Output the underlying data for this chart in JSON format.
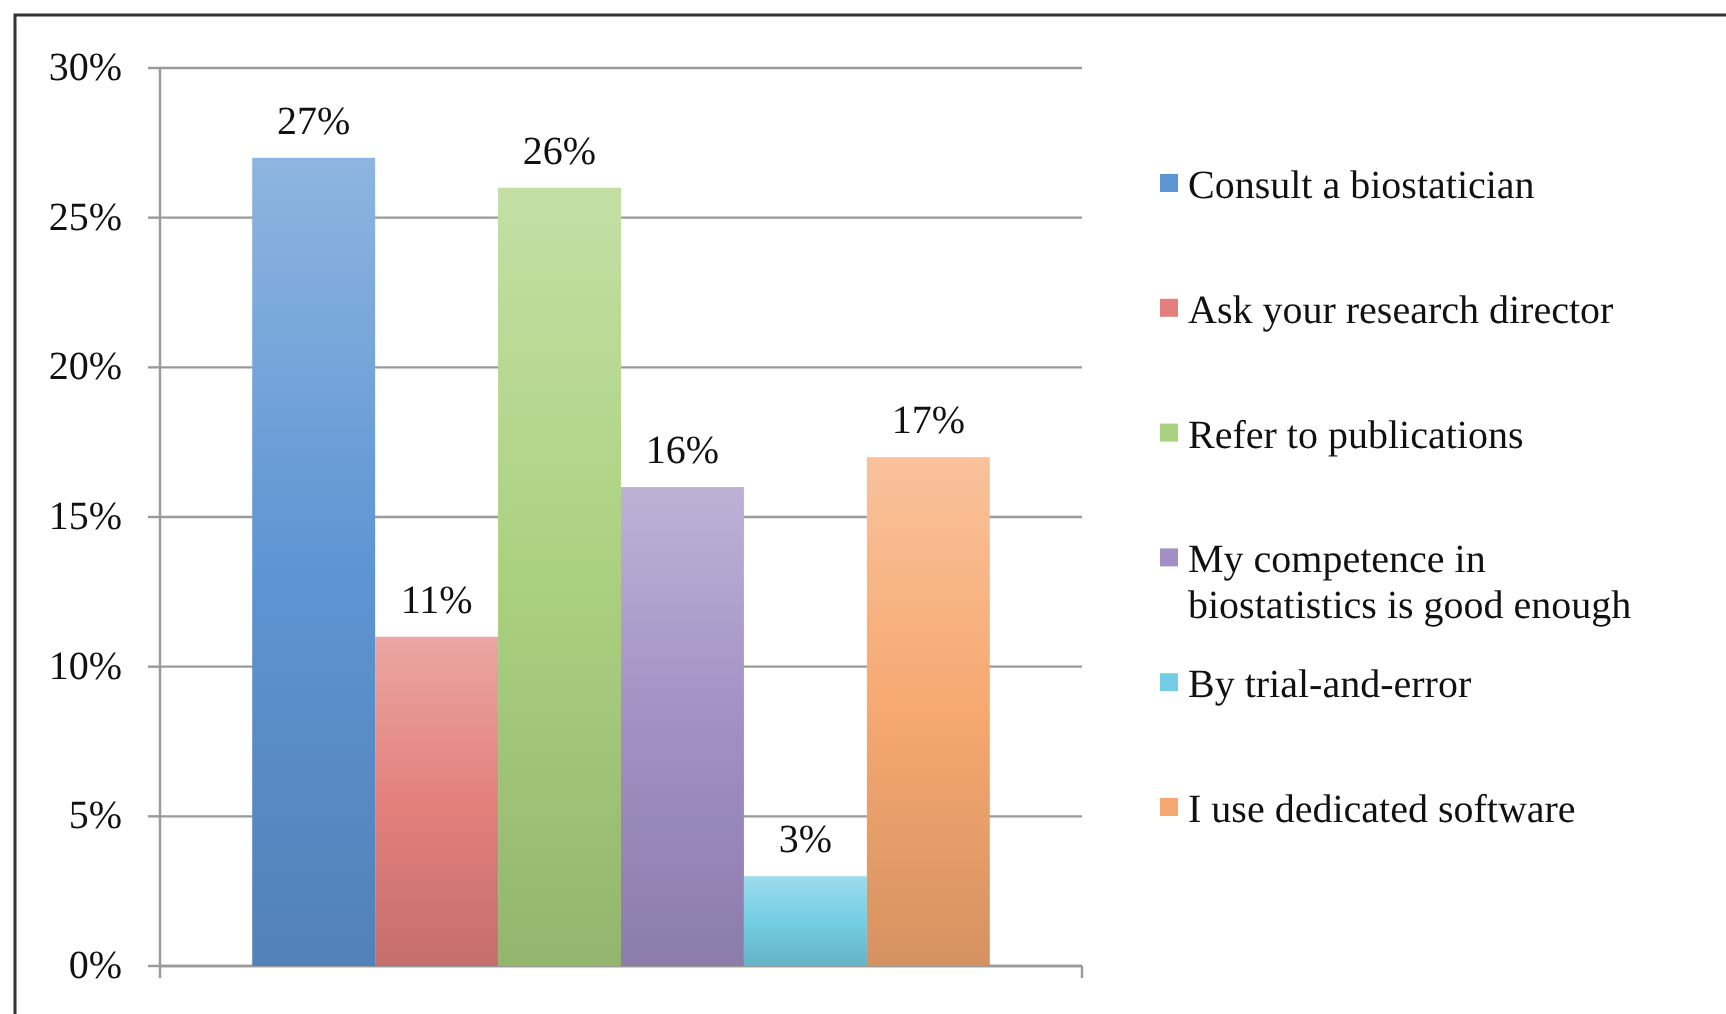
{
  "chart_data": {
    "type": "bar",
    "categories": [
      null
    ],
    "series": [
      {
        "name": "Consult a biostatician",
        "color": "#5e95d3",
        "values": [
          27
        ],
        "value_labels": [
          "27%"
        ]
      },
      {
        "name": "Ask your research director",
        "color": "#e3807c",
        "values": [
          11
        ],
        "value_labels": [
          "11%"
        ]
      },
      {
        "name": "Refer to publications",
        "color": "#aad17f",
        "values": [
          26
        ],
        "value_labels": [
          "26%"
        ]
      },
      {
        "name": "My competence in biostatistics is good enough",
        "color": "#a28fc4",
        "values": [
          16
        ],
        "value_labels": [
          "16%"
        ]
      },
      {
        "name": "By trial-and-error",
        "color": "#73cde4",
        "values": [
          3
        ],
        "value_labels": [
          "3%"
        ]
      },
      {
        "name": "I use dedicated software",
        "color": "#f6a870",
        "values": [
          17
        ],
        "value_labels": [
          "17%"
        ]
      }
    ],
    "ylim": [
      0,
      30
    ],
    "yticks": [
      {
        "value": 0,
        "label": "0%"
      },
      {
        "value": 5,
        "label": "5%"
      },
      {
        "value": 10,
        "label": "10%"
      },
      {
        "value": 15,
        "label": "15%"
      },
      {
        "value": 20,
        "label": "20%"
      },
      {
        "value": 25,
        "label": "25%"
      },
      {
        "value": 30,
        "label": "30%"
      }
    ],
    "grid": "y",
    "legend": "right"
  }
}
